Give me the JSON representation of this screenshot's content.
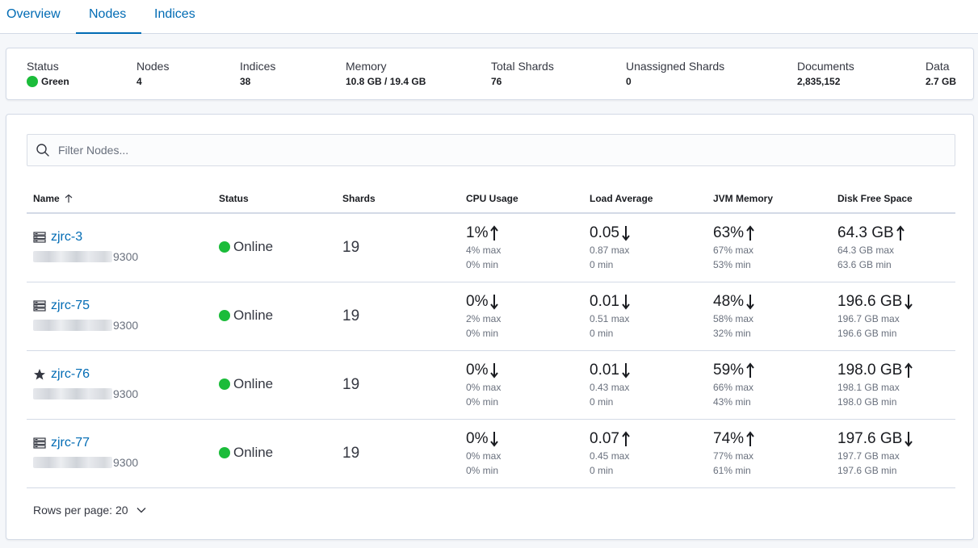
{
  "tabs": [
    {
      "label": "Overview"
    },
    {
      "label": "Nodes"
    },
    {
      "label": "Indices"
    }
  ],
  "summary": {
    "status": {
      "label": "Status",
      "value": "Green",
      "color": "#1bbc3a"
    },
    "nodes": {
      "label": "Nodes",
      "value": "4"
    },
    "indices": {
      "label": "Indices",
      "value": "38"
    },
    "memory": {
      "label": "Memory",
      "value": "10.8 GB / 19.4 GB"
    },
    "total_shards": {
      "label": "Total Shards",
      "value": "76"
    },
    "unassigned_shards": {
      "label": "Unassigned Shards",
      "value": "0"
    },
    "documents": {
      "label": "Documents",
      "value": "2,835,152"
    },
    "data": {
      "label": "Data",
      "value": "2.7 GB"
    }
  },
  "search": {
    "placeholder": "Filter Nodes..."
  },
  "table": {
    "columns": [
      "Name",
      "Status",
      "Shards",
      "CPU Usage",
      "Load Average",
      "JVM Memory",
      "Disk Free Space"
    ],
    "rows": [
      {
        "name": "zjrc-3",
        "icon": "server-icon",
        "address_suffix": "9300",
        "status": "Online",
        "shards": "19",
        "cpu": {
          "value": "1%",
          "trend": "up",
          "max": "4% max",
          "min": "0% min"
        },
        "load": {
          "value": "0.05",
          "trend": "down",
          "max": "0.87 max",
          "min": "0 min"
        },
        "jvm": {
          "value": "63%",
          "trend": "up",
          "max": "67% max",
          "min": "53% min"
        },
        "disk": {
          "value": "64.3 GB",
          "trend": "up",
          "max": "64.3 GB max",
          "min": "63.6 GB min"
        }
      },
      {
        "name": "zjrc-75",
        "icon": "server-icon",
        "address_suffix": "9300",
        "status": "Online",
        "shards": "19",
        "cpu": {
          "value": "0%",
          "trend": "down",
          "max": "2% max",
          "min": "0% min"
        },
        "load": {
          "value": "0.01",
          "trend": "down",
          "max": "0.51 max",
          "min": "0 min"
        },
        "jvm": {
          "value": "48%",
          "trend": "down",
          "max": "58% max",
          "min": "32% min"
        },
        "disk": {
          "value": "196.6 GB",
          "trend": "down",
          "max": "196.7 GB max",
          "min": "196.6 GB min"
        }
      },
      {
        "name": "zjrc-76",
        "icon": "star-icon",
        "address_suffix": "9300",
        "status": "Online",
        "shards": "19",
        "cpu": {
          "value": "0%",
          "trend": "down",
          "max": "0% max",
          "min": "0% min"
        },
        "load": {
          "value": "0.01",
          "trend": "down",
          "max": "0.43 max",
          "min": "0 min"
        },
        "jvm": {
          "value": "59%",
          "trend": "up",
          "max": "66% max",
          "min": "43% min"
        },
        "disk": {
          "value": "198.0 GB",
          "trend": "up",
          "max": "198.1 GB max",
          "min": "198.0 GB min"
        }
      },
      {
        "name": "zjrc-77",
        "icon": "server-icon",
        "address_suffix": "9300",
        "status": "Online",
        "shards": "19",
        "cpu": {
          "value": "0%",
          "trend": "down",
          "max": "0% max",
          "min": "0% min"
        },
        "load": {
          "value": "0.07",
          "trend": "up",
          "max": "0.45 max",
          "min": "0 min"
        },
        "jvm": {
          "value": "74%",
          "trend": "up",
          "max": "77% max",
          "min": "61% min"
        },
        "disk": {
          "value": "197.6 GB",
          "trend": "down",
          "max": "197.7 GB max",
          "min": "197.6 GB min"
        }
      }
    ]
  },
  "pagination": {
    "rows_per_page_label": "Rows per page: 20"
  }
}
